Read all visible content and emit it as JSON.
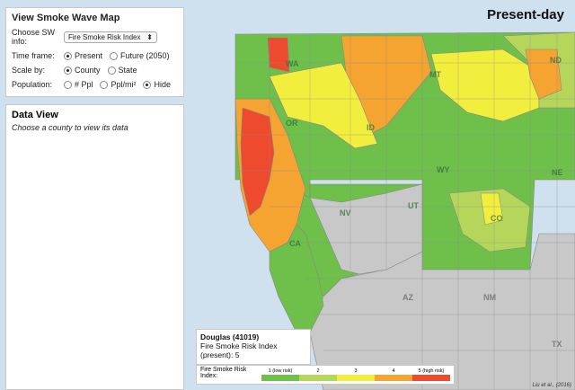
{
  "map_title": "Present-day",
  "credit": "Liu et al., (2016)",
  "controls": {
    "title": "View Smoke Wave Map",
    "choose_label": "Choose SW info:",
    "choose_value": "Fire Smoke Risk Index",
    "timeframe_label": "Time frame:",
    "timeframe_options": [
      "Present",
      "Future (2050)"
    ],
    "timeframe_selected": "Present",
    "scale_label": "Scale by:",
    "scale_options": [
      "County",
      "State"
    ],
    "scale_selected": "County",
    "population_label": "Population:",
    "population_options": [
      "# Ppl",
      "Ppl/mi²",
      "Hide"
    ],
    "population_selected": "Hide"
  },
  "data_view": {
    "title": "Data View",
    "hint": "Choose a county to view its data"
  },
  "info": {
    "county": "Douglas (41019)",
    "metric": "Fire Smoke Risk Index",
    "value": "(present): 5"
  },
  "legend": {
    "title": "Fire Smoke Risk Index:",
    "items": [
      {
        "label": "1 (low risk)",
        "color": "#6fbf4b"
      },
      {
        "label": "2",
        "color": "#b5d65a"
      },
      {
        "label": "3",
        "color": "#f2ee3e"
      },
      {
        "label": "4",
        "color": "#f5a431"
      },
      {
        "label": "5 (high risk)",
        "color": "#ee4a2e"
      }
    ]
  },
  "states": {
    "wa": "WA",
    "mt": "MT",
    "nd": "ND",
    "or": "OR",
    "id": "ID",
    "wy": "WY",
    "ne": "NE",
    "nv": "NV",
    "ut": "UT",
    "co": "CO",
    "ca": "CA",
    "az": "AZ",
    "nm": "NM",
    "tx": "TX"
  },
  "colors": {
    "ocean": "#cfe0ee",
    "no_data": "#c8c8c8",
    "border": "#888888"
  }
}
